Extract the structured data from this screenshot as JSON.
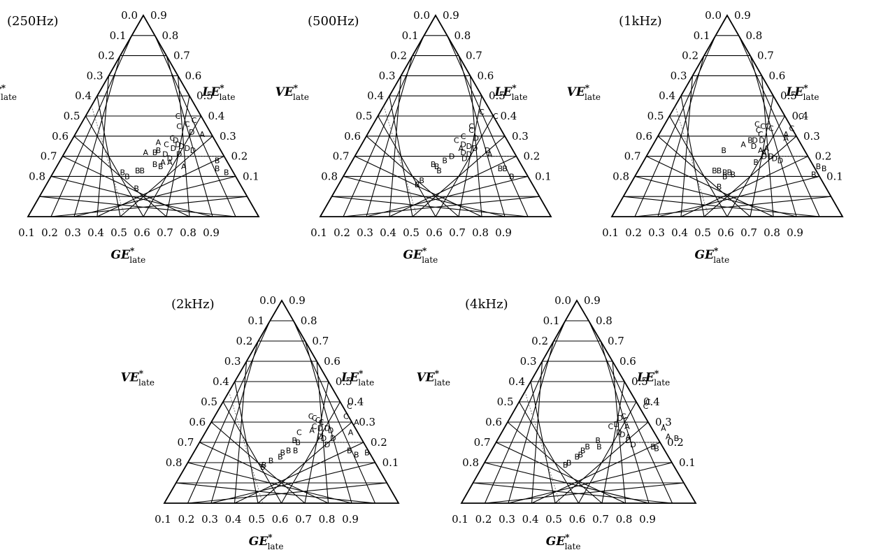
{
  "chart_data": [
    {
      "type": "scatter",
      "title": "(250Hz)",
      "axes": {
        "left": "VE*late",
        "right": "LE*late",
        "bottom": "GE*late"
      },
      "left_ticks": [
        "0.0",
        "0.1",
        "0.2",
        "0.3",
        "0.4",
        "0.5",
        "0.6",
        "0.7",
        "0.8"
      ],
      "right_ticks": [
        "0.9",
        "0.8",
        "0.7",
        "0.6",
        "0.5",
        "0.4",
        "0.3",
        "0.2",
        "0.1"
      ],
      "bottom_ticks": [
        "0.1",
        "0.2",
        "0.3",
        "0.4",
        "0.5",
        "0.6",
        "0.7",
        "0.8",
        "0.9"
      ],
      "points": [
        {
          "label": "C",
          "ge": 0.4,
          "le": 0.5
        },
        {
          "label": "C",
          "ge": 0.48,
          "le": 0.48
        },
        {
          "label": "C",
          "ge": 0.43,
          "le": 0.45
        },
        {
          "label": "C",
          "ge": 0.46,
          "le": 0.46
        },
        {
          "label": "D",
          "ge": 0.5,
          "le": 0.42
        },
        {
          "label": "A",
          "ge": 0.55,
          "le": 0.41
        },
        {
          "label": "C",
          "ge": 0.43,
          "le": 0.39
        },
        {
          "label": "C",
          "ge": 0.42,
          "le": 0.36
        },
        {
          "label": "A",
          "ge": 0.38,
          "le": 0.37
        },
        {
          "label": "D",
          "ge": 0.45,
          "le": 0.38
        },
        {
          "label": "D",
          "ge": 0.47,
          "le": 0.36
        },
        {
          "label": "D",
          "ge": 0.49,
          "le": 0.35
        },
        {
          "label": "B",
          "ge": 0.4,
          "le": 0.33
        },
        {
          "label": "D",
          "ge": 0.46,
          "le": 0.34
        },
        {
          "label": "D",
          "ge": 0.52,
          "le": 0.34
        },
        {
          "label": "D",
          "ge": 0.55,
          "le": 0.33
        },
        {
          "label": "A",
          "ge": 0.35,
          "le": 0.32
        },
        {
          "label": "B",
          "ge": 0.39,
          "le": 0.32
        },
        {
          "label": "D",
          "ge": 0.44,
          "le": 0.31
        },
        {
          "label": "D",
          "ge": 0.5,
          "le": 0.31
        },
        {
          "label": "D",
          "ge": 0.47,
          "le": 0.29
        },
        {
          "label": "A",
          "ge": 0.45,
          "le": 0.27
        },
        {
          "label": "A",
          "ge": 0.48,
          "le": 0.27
        },
        {
          "label": "A",
          "ge": 0.55,
          "le": 0.25
        },
        {
          "label": "B",
          "ge": 0.42,
          "le": 0.26
        },
        {
          "label": "B",
          "ge": 0.45,
          "le": 0.25
        },
        {
          "label": "B",
          "ge": 0.36,
          "le": 0.23
        },
        {
          "label": "B",
          "ge": 0.38,
          "le": 0.23
        },
        {
          "label": "B",
          "ge": 0.3,
          "le": 0.22
        },
        {
          "label": "B",
          "ge": 0.33,
          "le": 0.2
        },
        {
          "label": "B",
          "ge": 0.4,
          "le": 0.14
        },
        {
          "label": "B",
          "ge": 0.68,
          "le": 0.28
        },
        {
          "label": "B",
          "ge": 0.7,
          "le": 0.24
        },
        {
          "label": "B",
          "ge": 0.75,
          "le": 0.22
        }
      ]
    },
    {
      "type": "scatter",
      "title": "(500Hz)",
      "axes": {
        "left": "VE*late",
        "right": "LE*late",
        "bottom": "GE*late"
      },
      "left_ticks": [
        "0.0",
        "0.1",
        "0.2",
        "0.3",
        "0.4",
        "0.5",
        "0.6",
        "0.7",
        "0.8"
      ],
      "right_ticks": [
        "0.9",
        "0.8",
        "0.7",
        "0.6",
        "0.5",
        "0.4",
        "0.3",
        "0.2",
        "0.1"
      ],
      "bottom_ticks": [
        "0.1",
        "0.2",
        "0.3",
        "0.4",
        "0.5",
        "0.6",
        "0.7",
        "0.8",
        "0.9"
      ],
      "points": [
        {
          "label": "C",
          "ge": 0.44,
          "le": 0.52
        },
        {
          "label": "C",
          "ge": 0.51,
          "le": 0.5
        },
        {
          "label": "C",
          "ge": 0.43,
          "le": 0.45
        },
        {
          "label": "C",
          "ge": 0.44,
          "le": 0.43
        },
        {
          "label": "C",
          "ge": 0.42,
          "le": 0.4
        },
        {
          "label": "C",
          "ge": 0.4,
          "le": 0.38
        },
        {
          "label": "D",
          "ge": 0.48,
          "le": 0.39
        },
        {
          "label": "D",
          "ge": 0.44,
          "le": 0.36
        },
        {
          "label": "D",
          "ge": 0.47,
          "le": 0.35
        },
        {
          "label": "A",
          "ge": 0.44,
          "le": 0.34
        },
        {
          "label": "D",
          "ge": 0.5,
          "le": 0.34
        },
        {
          "label": "D",
          "ge": 0.56,
          "le": 0.33
        },
        {
          "label": "D",
          "ge": 0.46,
          "le": 0.32
        },
        {
          "label": "D",
          "ge": 0.49,
          "le": 0.31
        },
        {
          "label": "A",
          "ge": 0.58,
          "le": 0.31
        },
        {
          "label": "D",
          "ge": 0.42,
          "le": 0.3
        },
        {
          "label": "B",
          "ge": 0.4,
          "le": 0.28
        },
        {
          "label": "D",
          "ge": 0.48,
          "le": 0.29
        },
        {
          "label": "B",
          "ge": 0.36,
          "le": 0.26
        },
        {
          "label": "B",
          "ge": 0.38,
          "le": 0.25
        },
        {
          "label": "B",
          "ge": 0.4,
          "le": 0.23
        },
        {
          "label": "B",
          "ge": 0.35,
          "le": 0.18
        },
        {
          "label": "B",
          "ge": 0.34,
          "le": 0.16
        },
        {
          "label": "B",
          "ge": 0.66,
          "le": 0.24
        },
        {
          "label": "B",
          "ge": 0.68,
          "le": 0.24
        },
        {
          "label": "B",
          "ge": 0.73,
          "le": 0.2
        }
      ]
    },
    {
      "type": "scatter",
      "title": "(1kHz)",
      "axes": {
        "left": "VE*late",
        "right": "LE*late",
        "bottom": "GE*late"
      },
      "left_ticks": [
        "0.0",
        "0.1",
        "0.2",
        "0.3",
        "0.4",
        "0.5",
        "0.6",
        "0.7",
        "0.8"
      ],
      "right_ticks": [
        "0.9",
        "0.8",
        "0.7",
        "0.6",
        "0.5",
        "0.4",
        "0.3",
        "0.2",
        "0.1"
      ],
      "bottom_ticks": [
        "0.1",
        "0.2",
        "0.3",
        "0.4",
        "0.5",
        "0.6",
        "0.7",
        "0.8",
        "0.9"
      ],
      "points": [
        {
          "label": "C",
          "ge": 0.57,
          "le": 0.5
        },
        {
          "label": "C",
          "ge": 0.56,
          "le": 0.44
        },
        {
          "label": "C",
          "ge": 0.4,
          "le": 0.46
        },
        {
          "label": "C",
          "ge": 0.43,
          "le": 0.45
        },
        {
          "label": "C",
          "ge": 0.45,
          "le": 0.45
        },
        {
          "label": "C",
          "ge": 0.47,
          "le": 0.44
        },
        {
          "label": "C",
          "ge": 0.42,
          "le": 0.43
        },
        {
          "label": "C",
          "ge": 0.44,
          "le": 0.41
        },
        {
          "label": "A",
          "ge": 0.55,
          "le": 0.41
        },
        {
          "label": "A",
          "ge": 0.56,
          "le": 0.39
        },
        {
          "label": "B",
          "ge": 0.41,
          "le": 0.38
        },
        {
          "label": "D",
          "ge": 0.43,
          "le": 0.38
        },
        {
          "label": "D",
          "ge": 0.46,
          "le": 0.38
        },
        {
          "label": "A",
          "ge": 0.39,
          "le": 0.36
        },
        {
          "label": "D",
          "ge": 0.44,
          "le": 0.35
        },
        {
          "label": "A",
          "ge": 0.5,
          "le": 0.34
        },
        {
          "label": "A",
          "ge": 0.48,
          "le": 0.33
        },
        {
          "label": "B",
          "ge": 0.32,
          "le": 0.33
        },
        {
          "label": "A",
          "ge": 0.5,
          "le": 0.32
        },
        {
          "label": "D",
          "ge": 0.51,
          "le": 0.3
        },
        {
          "label": "D",
          "ge": 0.54,
          "le": 0.3
        },
        {
          "label": "D",
          "ge": 0.56,
          "le": 0.29
        },
        {
          "label": "D",
          "ge": 0.59,
          "le": 0.28
        },
        {
          "label": "B",
          "ge": 0.49,
          "le": 0.27
        },
        {
          "label": "B",
          "ge": 0.33,
          "le": 0.23
        },
        {
          "label": "B",
          "ge": 0.35,
          "le": 0.23
        },
        {
          "label": "B",
          "ge": 0.38,
          "le": 0.22
        },
        {
          "label": "B",
          "ge": 0.4,
          "le": 0.22
        },
        {
          "label": "B",
          "ge": 0.42,
          "le": 0.21
        },
        {
          "label": "B",
          "ge": 0.39,
          "le": 0.2
        },
        {
          "label": "B",
          "ge": 0.39,
          "le": 0.15
        },
        {
          "label": "B",
          "ge": 0.77,
          "le": 0.25
        },
        {
          "label": "B",
          "ge": 0.8,
          "le": 0.24
        },
        {
          "label": "B",
          "ge": 0.77,
          "le": 0.21
        }
      ]
    },
    {
      "type": "scatter",
      "title": "(2kHz)",
      "axes": {
        "left": "VE*late",
        "right": "LE*late",
        "bottom": "GE*late"
      },
      "left_ticks": [
        "0.0",
        "0.1",
        "0.2",
        "0.3",
        "0.4",
        "0.5",
        "0.6",
        "0.7",
        "0.8"
      ],
      "right_ticks": [
        "0.9",
        "0.8",
        "0.7",
        "0.6",
        "0.5",
        "0.4",
        "0.3",
        "0.2",
        "0.1"
      ],
      "bottom_ticks": [
        "0.1",
        "0.2",
        "0.3",
        "0.4",
        "0.5",
        "0.6",
        "0.7",
        "0.8",
        "0.9"
      ],
      "points": [
        {
          "label": "C",
          "ge": 0.55,
          "le": 0.48
        },
        {
          "label": "C",
          "ge": 0.56,
          "le": 0.43
        },
        {
          "label": "C",
          "ge": 0.41,
          "le": 0.43
        },
        {
          "label": "C",
          "ge": 0.43,
          "le": 0.42
        },
        {
          "label": "C",
          "ge": 0.45,
          "le": 0.41
        },
        {
          "label": "C",
          "ge": 0.47,
          "le": 0.4
        },
        {
          "label": "A",
          "ge": 0.62,
          "le": 0.4
        },
        {
          "label": "C",
          "ge": 0.45,
          "le": 0.38
        },
        {
          "label": "D",
          "ge": 0.48,
          "le": 0.37
        },
        {
          "label": "D",
          "ge": 0.51,
          "le": 0.37
        },
        {
          "label": "D",
          "ge": 0.53,
          "le": 0.36
        },
        {
          "label": "A",
          "ge": 0.45,
          "le": 0.36
        },
        {
          "label": "C",
          "ge": 0.4,
          "le": 0.35
        },
        {
          "label": "A",
          "ge": 0.62,
          "le": 0.35
        },
        {
          "label": "D",
          "ge": 0.5,
          "le": 0.33
        },
        {
          "label": "D",
          "ge": 0.52,
          "le": 0.32
        },
        {
          "label": "D",
          "ge": 0.56,
          "le": 0.32
        },
        {
          "label": "B",
          "ge": 0.4,
          "le": 0.31
        },
        {
          "label": "B",
          "ge": 0.42,
          "le": 0.3
        },
        {
          "label": "D",
          "ge": 0.55,
          "le": 0.29
        },
        {
          "label": "B",
          "ge": 0.43,
          "le": 0.26
        },
        {
          "label": "B",
          "ge": 0.4,
          "le": 0.26
        },
        {
          "label": "B",
          "ge": 0.38,
          "le": 0.25
        },
        {
          "label": "B",
          "ge": 0.38,
          "le": 0.23
        },
        {
          "label": "B",
          "ge": 0.35,
          "le": 0.21
        },
        {
          "label": "B",
          "ge": 0.33,
          "le": 0.19
        },
        {
          "label": "B",
          "ge": 0.33,
          "le": 0.18
        },
        {
          "label": "B",
          "ge": 0.66,
          "le": 0.26
        },
        {
          "label": "B",
          "ge": 0.7,
          "le": 0.24
        },
        {
          "label": "B",
          "ge": 0.74,
          "le": 0.25
        }
      ]
    },
    {
      "type": "scatter",
      "title": "(4kHz)",
      "axes": {
        "left": "VE*late",
        "right": "LE*late",
        "bottom": "GE*late"
      },
      "left_ticks": [
        "0.0",
        "0.1",
        "0.2",
        "0.3",
        "0.4",
        "0.5",
        "0.6",
        "0.7",
        "0.8"
      ],
      "right_ticks": [
        "0.9",
        "0.8",
        "0.7",
        "0.6",
        "0.5",
        "0.4",
        "0.3",
        "0.2",
        "0.1"
      ],
      "bottom_ticks": [
        "0.1",
        "0.2",
        "0.3",
        "0.4",
        "0.5",
        "0.6",
        "0.7",
        "0.8",
        "0.9"
      ],
      "points": [
        {
          "label": "C",
          "ge": 0.55,
          "le": 0.5
        },
        {
          "label": "C",
          "ge": 0.55,
          "le": 0.48
        },
        {
          "label": "C",
          "ge": 0.48,
          "le": 0.43
        },
        {
          "label": "D",
          "ge": 0.47,
          "le": 0.42
        },
        {
          "label": "C",
          "ge": 0.5,
          "le": 0.41
        },
        {
          "label": "D",
          "ge": 0.47,
          "le": 0.39
        },
        {
          "label": "C",
          "ge": 0.45,
          "le": 0.38
        },
        {
          "label": "A",
          "ge": 0.52,
          "le": 0.38
        },
        {
          "label": "A",
          "ge": 0.68,
          "le": 0.37
        },
        {
          "label": "D",
          "ge": 0.5,
          "le": 0.35
        },
        {
          "label": "D",
          "ge": 0.52,
          "le": 0.34
        },
        {
          "label": "A",
          "ge": 0.55,
          "le": 0.33
        },
        {
          "label": "A",
          "ge": 0.72,
          "le": 0.33
        },
        {
          "label": "B",
          "ge": 0.76,
          "le": 0.32
        },
        {
          "label": "B",
          "ge": 0.43,
          "le": 0.31
        },
        {
          "label": "D",
          "ge": 0.56,
          "le": 0.31
        },
        {
          "label": "D",
          "ge": 0.59,
          "le": 0.29
        },
        {
          "label": "B",
          "ge": 0.68,
          "le": 0.28
        },
        {
          "label": "B",
          "ge": 0.7,
          "le": 0.27
        },
        {
          "label": "B",
          "ge": 0.45,
          "le": 0.28
        },
        {
          "label": "B",
          "ge": 0.4,
          "le": 0.28
        },
        {
          "label": "B",
          "ge": 0.39,
          "le": 0.26
        },
        {
          "label": "B",
          "ge": 0.39,
          "le": 0.24
        },
        {
          "label": "B",
          "ge": 0.38,
          "le": 0.23
        },
        {
          "label": "B",
          "ge": 0.36,
          "le": 0.2
        },
        {
          "label": "B",
          "ge": 0.35,
          "le": 0.19
        }
      ]
    }
  ]
}
